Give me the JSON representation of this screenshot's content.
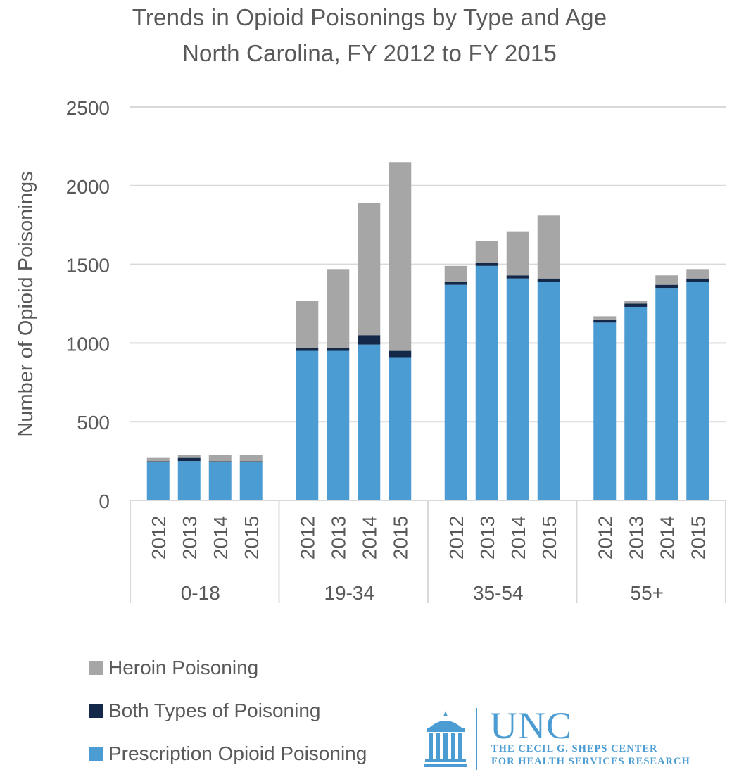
{
  "title_line1": "Trends  in Opioid Poisonings by Type and Age",
  "title_line2": "North Carolina, FY 2012 to FY 2015",
  "colors": {
    "heroin": "#a6a6a6",
    "both": "#14294a",
    "prescription": "#4b9cd3",
    "grid": "#d9d9d9",
    "text": "#595959",
    "brand": "#4b9cd3"
  },
  "legend": [
    {
      "key": "heroin",
      "label": "Heroin Poisoning"
    },
    {
      "key": "both",
      "label": "Both Types of Poisoning"
    },
    {
      "key": "prescription",
      "label": "Prescription Opioid Poisoning"
    }
  ],
  "logo": {
    "wordmark": "UNC",
    "line1": "THE CECIL G. SHEPS CENTER",
    "line2": "FOR HEALTH SERVICES RESEARCH",
    "icon": "old-well-icon"
  },
  "chart_data": {
    "type": "bar",
    "stacked": true,
    "title": "Trends  in Opioid Poisonings by Type and Age\nNorth Carolina, FY 2012 to FY 2015",
    "xlabel": "",
    "ylabel": "Number of Opioid Poisonings",
    "ylim": [
      0,
      2500
    ],
    "yticks": [
      0,
      500,
      1000,
      1500,
      2000,
      2500
    ],
    "grid": true,
    "legend_position": "bottom-left",
    "groups": [
      "0-18",
      "19-34",
      "35-54",
      "55+"
    ],
    "categories": [
      "2012",
      "2013",
      "2014",
      "2015"
    ],
    "series": [
      {
        "name": "Prescription Opioid Poisoning",
        "key": "prescription",
        "values": [
          [
            245,
            250,
            245,
            245
          ],
          [
            950,
            950,
            990,
            910
          ],
          [
            1370,
            1490,
            1410,
            1390
          ],
          [
            1130,
            1230,
            1350,
            1390
          ]
        ]
      },
      {
        "name": "Both Types of Poisoning",
        "key": "both",
        "values": [
          [
            3,
            20,
            3,
            3
          ],
          [
            20,
            20,
            60,
            40
          ],
          [
            20,
            20,
            20,
            20
          ],
          [
            20,
            20,
            20,
            20
          ]
        ]
      },
      {
        "name": "Heroin Poisoning",
        "key": "heroin",
        "values": [
          [
            22,
            20,
            42,
            42
          ],
          [
            300,
            500,
            840,
            1200
          ],
          [
            100,
            140,
            280,
            400
          ],
          [
            20,
            20,
            60,
            60
          ]
        ]
      }
    ]
  }
}
